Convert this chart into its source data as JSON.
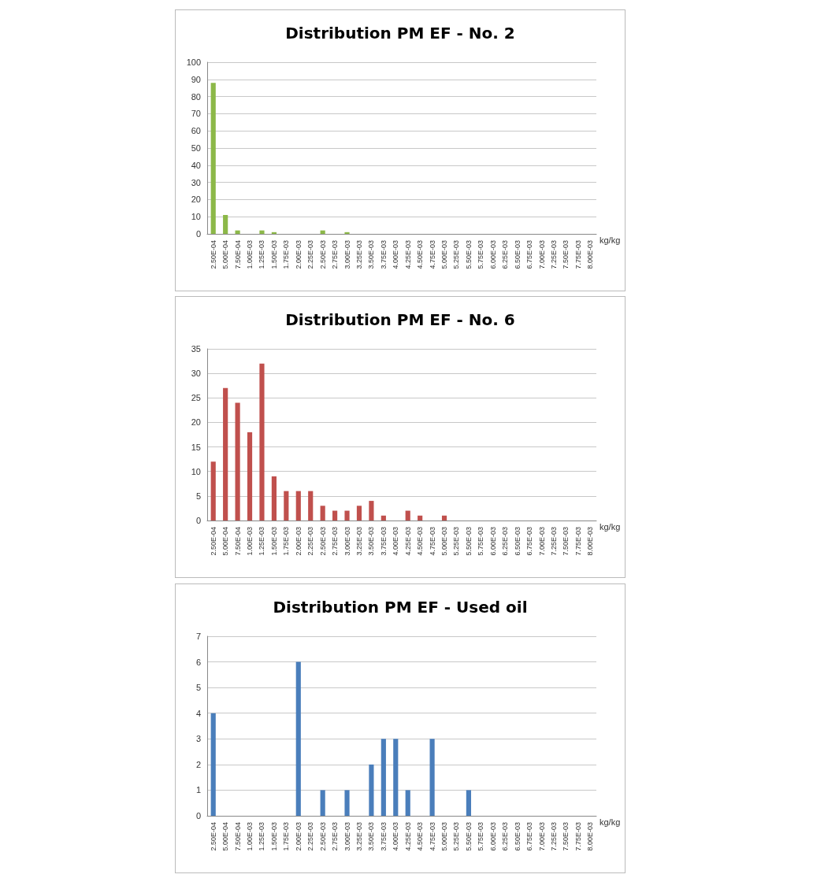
{
  "chart_data": [
    {
      "type": "bar",
      "title": "Distribution PM EF - No. 2",
      "xlabel": "kg/kg",
      "categories": [
        "2.50E-04",
        "5.00E-04",
        "7.50E-04",
        "1.00E-03",
        "1.25E-03",
        "1.50E-03",
        "1.75E-03",
        "2.00E-03",
        "2.25E-03",
        "2.50E-03",
        "2.75E-03",
        "3.00E-03",
        "3.25E-03",
        "3.50E-03",
        "3.75E-03",
        "4.00E-03",
        "4.25E-03",
        "4.50E-03",
        "4.75E-03",
        "5.00E-03",
        "5.25E-03",
        "5.50E-03",
        "5.75E-03",
        "6.00E-03",
        "6.25E-03",
        "6.50E-03",
        "6.75E-03",
        "7.00E-03",
        "7.25E-03",
        "7.50E-03",
        "7.75E-03",
        "8.00E-03"
      ],
      "values": [
        88,
        11,
        2,
        0,
        2,
        1,
        0,
        0,
        0,
        2,
        0,
        1,
        0,
        0,
        0,
        0,
        0,
        0,
        0,
        0,
        0,
        0,
        0,
        0,
        0,
        0,
        0,
        0,
        0,
        0,
        0,
        0
      ],
      "color": "#8cb848",
      "ylim": [
        0,
        100
      ],
      "yticks": [
        0,
        10,
        20,
        30,
        40,
        50,
        60,
        70,
        80,
        90,
        100
      ],
      "grid": "y"
    },
    {
      "type": "bar",
      "title": "Distribution PM EF - No. 6",
      "xlabel": "kg/kg",
      "categories": [
        "2.50E-04",
        "5.00E-04",
        "7.50E-04",
        "1.00E-03",
        "1.25E-03",
        "1.50E-03",
        "1.75E-03",
        "2.00E-03",
        "2.25E-03",
        "2.50E-03",
        "2.75E-03",
        "3.00E-03",
        "3.25E-03",
        "3.50E-03",
        "3.75E-03",
        "4.00E-03",
        "4.25E-03",
        "4.50E-03",
        "4.75E-03",
        "5.00E-03",
        "5.25E-03",
        "5.50E-03",
        "5.75E-03",
        "6.00E-03",
        "6.25E-03",
        "6.50E-03",
        "6.75E-03",
        "7.00E-03",
        "7.25E-03",
        "7.50E-03",
        "7.75E-03",
        "8.00E-03"
      ],
      "values": [
        12,
        27,
        24,
        18,
        32,
        9,
        6,
        6,
        6,
        3,
        2,
        2,
        3,
        4,
        1,
        0,
        2,
        1,
        0,
        1,
        0,
        0,
        0,
        0,
        0,
        0,
        0,
        0,
        0,
        0,
        0,
        0
      ],
      "color": "#c0504d",
      "ylim": [
        0,
        35
      ],
      "yticks": [
        0,
        5,
        10,
        15,
        20,
        25,
        30,
        35
      ],
      "grid": "y"
    },
    {
      "type": "bar",
      "title": "Distribution PM EF - Used oil",
      "xlabel": "kg/kg",
      "categories": [
        "2.50E-04",
        "5.00E-04",
        "7.50E-04",
        "1.00E-03",
        "1.25E-03",
        "1.50E-03",
        "1.75E-03",
        "2.00E-03",
        "2.25E-03",
        "2.50E-03",
        "2.75E-03",
        "3.00E-03",
        "3.25E-03",
        "3.50E-03",
        "3.75E-03",
        "4.00E-03",
        "4.25E-03",
        "4.50E-03",
        "4.75E-03",
        "5.00E-03",
        "5.25E-03",
        "5.50E-03",
        "5.75E-03",
        "6.00E-03",
        "6.25E-03",
        "6.50E-03",
        "6.75E-03",
        "7.00E-03",
        "7.25E-03",
        "7.50E-03",
        "7.75E-03",
        "8.00E-03"
      ],
      "values": [
        4,
        0,
        0,
        0,
        0,
        0,
        0,
        6,
        0,
        1,
        0,
        1,
        0,
        2,
        3,
        3,
        1,
        0,
        3,
        0,
        0,
        1,
        0,
        0,
        0,
        0,
        0,
        0,
        0,
        0,
        0,
        0
      ],
      "color": "#4a7ebb",
      "ylim": [
        0,
        7
      ],
      "yticks": [
        0,
        1,
        2,
        3,
        4,
        5,
        6,
        7
      ],
      "grid": "y"
    }
  ]
}
